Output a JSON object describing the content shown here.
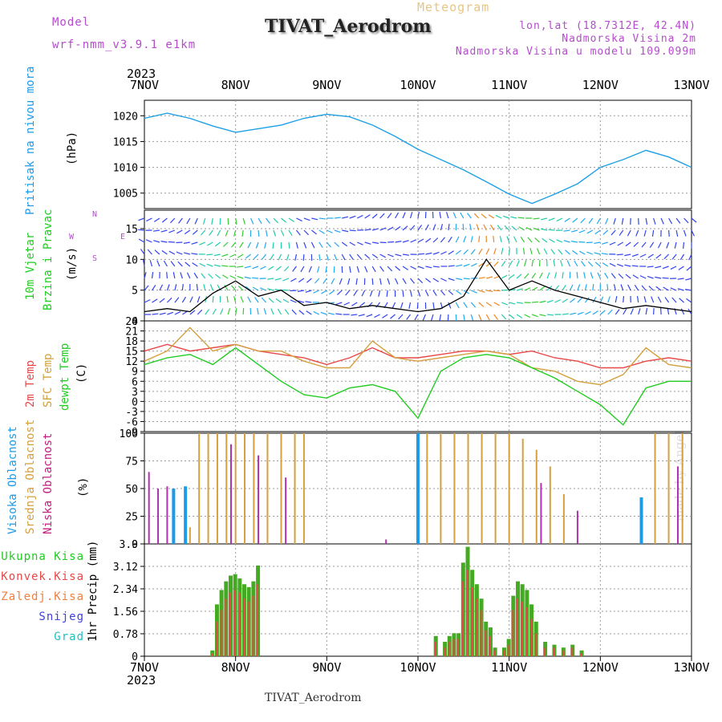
{
  "header": {
    "title": "TIVAT_Aerodrom",
    "subtitle": "Meteogram",
    "model_label": "Model",
    "model_name": "wrf-nmm_v3.9.1 e1km",
    "coords": "lon,lat (18.7312E, 42.4N)",
    "elev_station": "Nadmorska Visina 2m",
    "elev_model": "Nadmorska Visina u modelu 109.099m",
    "footer_station": "TIVAT_Aerodrom",
    "credit": "made by Angel"
  },
  "time_axis": {
    "year": "2023",
    "labels": [
      "7NOV",
      "8NOV",
      "9NOV",
      "10NOV",
      "11NOV",
      "12NOV",
      "13NOV"
    ]
  },
  "wind_compass": [
    "N",
    "W",
    "E",
    "S"
  ],
  "colors": {
    "pressure": "#1ea0e6",
    "wind_speed": "#000000",
    "temp2m": "#e84848",
    "sfc_temp": "#d4a040",
    "dewpoint": "#22cc22",
    "cloud_high": "#1e9be8",
    "cloud_mid": "#d4a040",
    "cloud_low": "#b030b0",
    "precip_total": "#44aa22",
    "precip_conv": "#e84848",
    "precip_ice": "#f08040",
    "precip_snow": "#4040e0",
    "precip_hail": "#20c0c0"
  },
  "chart_data": [
    {
      "type": "line",
      "id": "pressure",
      "ylabel_lines": [
        "Pritisak na nivou mora",
        "(hPa)"
      ],
      "yticks": [
        1005,
        1010,
        1015,
        1020
      ],
      "ylim": [
        1002,
        1023
      ],
      "x_day": [
        0,
        0.25,
        0.5,
        0.75,
        1.0,
        1.25,
        1.5,
        1.75,
        2.0,
        2.25,
        2.5,
        2.75,
        3.0,
        3.25,
        3.5,
        3.75,
        4.0,
        4.25,
        4.5,
        4.75,
        5.0,
        5.25,
        5.5,
        5.75,
        6.0
      ],
      "values": [
        1019.5,
        1020.5,
        1019.5,
        1018.0,
        1016.8,
        1017.5,
        1018.2,
        1019.5,
        1020.3,
        1019.8,
        1018.2,
        1016.0,
        1013.5,
        1011.5,
        1009.5,
        1007.2,
        1004.8,
        1003.0,
        1004.8,
        1006.8,
        1010.0,
        1011.5,
        1013.3,
        1012.0,
        1010.0
      ],
      "grid": true
    },
    {
      "type": "line",
      "id": "wind",
      "ylabel_lines": [
        "10m Vjetar",
        "Brzina i Pravac",
        "(m/s)"
      ],
      "yticks": [
        0,
        5,
        10,
        15
      ],
      "ylim": [
        0,
        18
      ],
      "x_day": [
        0,
        0.25,
        0.5,
        0.75,
        1.0,
        1.25,
        1.5,
        1.75,
        2.0,
        2.25,
        2.5,
        2.75,
        3.0,
        3.25,
        3.5,
        3.75,
        4.0,
        4.25,
        4.5,
        4.75,
        5.0,
        5.25,
        5.5,
        5.75,
        6.0
      ],
      "values": [
        1.5,
        2.0,
        1.5,
        4.5,
        6.5,
        4.0,
        5.0,
        2.5,
        3.0,
        2.0,
        2.5,
        2.0,
        1.5,
        2.0,
        4.0,
        10.0,
        5.0,
        6.5,
        5.0,
        4.0,
        3.0,
        2.0,
        2.5,
        2.0,
        1.5
      ],
      "grid": true
    },
    {
      "type": "line",
      "id": "temperature",
      "ylabel_lines": [
        "2m Temp",
        "SFC Temp",
        "dewpt Temp",
        "(C)"
      ],
      "yticks": [
        -9,
        -6,
        -3,
        0,
        3,
        6,
        9,
        12,
        15,
        18,
        21,
        24
      ],
      "ylim": [
        -9,
        24
      ],
      "x_day": [
        0,
        0.25,
        0.5,
        0.75,
        1.0,
        1.25,
        1.5,
        1.75,
        2.0,
        2.25,
        2.5,
        2.75,
        3.0,
        3.25,
        3.5,
        3.75,
        4.0,
        4.25,
        4.5,
        4.75,
        5.0,
        5.25,
        5.5,
        5.75,
        6.0
      ],
      "series": [
        {
          "name": "2m Temp",
          "values": [
            15,
            17,
            15,
            16,
            17,
            15,
            14,
            13,
            11,
            13,
            16,
            13,
            13,
            14,
            15,
            15,
            14,
            15,
            13,
            12,
            10,
            10,
            12,
            13,
            12
          ]
        },
        {
          "name": "SFC Temp",
          "values": [
            12,
            15,
            22,
            15,
            17,
            15,
            15,
            12,
            10,
            10,
            18,
            13,
            12,
            13,
            14,
            15,
            14,
            10,
            9,
            6,
            5,
            8,
            16,
            11,
            10
          ]
        },
        {
          "name": "dewpt Temp",
          "values": [
            11,
            13,
            14,
            11,
            16,
            11,
            6,
            2,
            1,
            4,
            5,
            3,
            -5,
            9,
            13,
            14,
            13,
            10,
            7,
            3,
            -1,
            -7,
            4,
            6,
            6
          ]
        }
      ],
      "grid": true
    },
    {
      "type": "bar",
      "id": "clouds",
      "ylabel_lines": [
        "Visoka Oblacnost",
        "Srednja Oblacnost",
        "Niska Oblacnost",
        "(%)"
      ],
      "yticks": [
        0,
        25,
        50,
        75,
        100
      ],
      "ylim": [
        0,
        100
      ],
      "series": [
        {
          "name": "Visoka Oblacnost",
          "x_day": [
            0.32,
            0.45,
            3.0,
            5.45
          ],
          "values": [
            50,
            52,
            100,
            42
          ]
        },
        {
          "name": "Srednja Oblacnost",
          "x_day": [
            0.5,
            0.6,
            0.7,
            0.8,
            0.9,
            1.0,
            1.1,
            1.2,
            1.35,
            1.5,
            1.65,
            1.75,
            3.1,
            3.25,
            3.4,
            3.55,
            3.7,
            3.85,
            4.0,
            4.15,
            4.3,
            4.45,
            4.6,
            5.6,
            5.75,
            5.9
          ],
          "values": [
            15,
            100,
            100,
            100,
            100,
            100,
            100,
            100,
            100,
            100,
            100,
            100,
            100,
            100,
            100,
            100,
            100,
            100,
            100,
            95,
            85,
            70,
            45,
            100,
            100,
            100
          ]
        },
        {
          "name": "Niska Oblacnost",
          "x_day": [
            0.05,
            0.15,
            0.25,
            0.95,
            1.25,
            1.55,
            2.65,
            4.35,
            4.75,
            5.85
          ],
          "values": [
            65,
            50,
            52,
            90,
            80,
            60,
            4,
            55,
            30,
            70
          ]
        }
      ],
      "grid": true
    },
    {
      "type": "bar",
      "id": "precip",
      "ylabel_lines": [
        "1hr Precip (mm)"
      ],
      "yticks": [
        0,
        0.78,
        1.56,
        2.34,
        3.12,
        3.9
      ],
      "ylim": [
        0,
        3.9
      ],
      "x_day": [
        0.75,
        0.8,
        0.85,
        0.9,
        0.95,
        1.0,
        1.05,
        1.1,
        1.15,
        1.2,
        1.25,
        3.2,
        3.3,
        3.35,
        3.4,
        3.45,
        3.5,
        3.55,
        3.6,
        3.65,
        3.7,
        3.75,
        3.8,
        3.85,
        3.95,
        4.0,
        4.05,
        4.1,
        4.15,
        4.2,
        4.25,
        4.3,
        4.4,
        4.5,
        4.6,
        4.7,
        4.8
      ],
      "series": [
        {
          "name": "Ukupna Kisa",
          "values": [
            0.2,
            1.8,
            2.3,
            2.6,
            2.8,
            2.85,
            2.7,
            2.5,
            2.4,
            2.6,
            3.15,
            0.7,
            0.5,
            0.7,
            0.8,
            0.8,
            3.25,
            3.8,
            3.0,
            2.5,
            2.0,
            1.2,
            1.0,
            0.3,
            0.3,
            0.6,
            2.1,
            2.6,
            2.5,
            2.3,
            1.8,
            1.2,
            0.5,
            0.4,
            0.3,
            0.4,
            0.2
          ]
        },
        {
          "name": "Konvek.Kisa",
          "values": [
            0.1,
            1.2,
            1.6,
            2.0,
            2.2,
            2.3,
            2.2,
            2.0,
            1.9,
            2.1,
            2.5,
            0.5,
            0.3,
            0.5,
            0.6,
            0.6,
            2.6,
            3.0,
            2.4,
            2.0,
            1.6,
            0.9,
            0.7,
            0.2,
            0.2,
            0.4,
            1.6,
            2.0,
            1.9,
            1.7,
            1.3,
            0.8,
            0.3,
            0.3,
            0.2,
            0.3,
            0.1
          ]
        },
        {
          "name": "Zaledj.Kisa",
          "values": []
        },
        {
          "name": "Snijeg",
          "values": []
        },
        {
          "name": "Grad",
          "values": []
        }
      ],
      "grid": true
    }
  ]
}
